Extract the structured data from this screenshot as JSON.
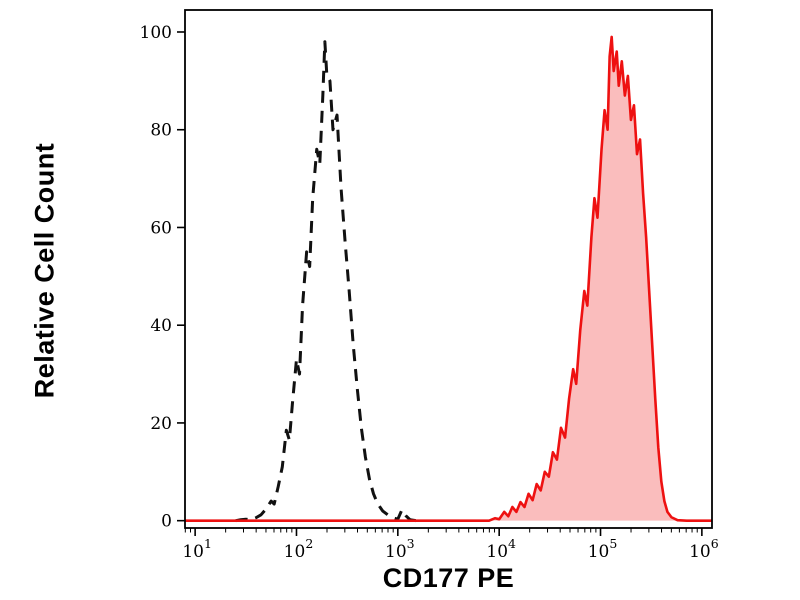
{
  "figure": {
    "background": "#ffffff",
    "frame_color": "#000000"
  },
  "chart_data": {
    "type": "area",
    "title": "",
    "xlabel": "CD177 PE",
    "ylabel": "Relative Cell Count",
    "x_scale": "log10",
    "x_range_log10": [
      0.9,
      6.1
    ],
    "ylim": [
      -1.5,
      104.5
    ],
    "grid": false,
    "legend": "none",
    "x_ticks": [
      {
        "mantissa": "10",
        "exponent": "1",
        "log10": 1
      },
      {
        "mantissa": "10",
        "exponent": "2",
        "log10": 2
      },
      {
        "mantissa": "10",
        "exponent": "3",
        "log10": 3
      },
      {
        "mantissa": "10",
        "exponent": "4",
        "log10": 4
      },
      {
        "mantissa": "10",
        "exponent": "5",
        "log10": 5
      },
      {
        "mantissa": "10",
        "exponent": "6",
        "log10": 6
      }
    ],
    "y_ticks": [
      0,
      20,
      40,
      60,
      80,
      100
    ],
    "series": [
      {
        "name": "dashed-black-control-histogram",
        "style": "dashed",
        "color": "#111111",
        "fill": "none",
        "stroke_width": 3,
        "dash": "12 8",
        "peak_x": 190,
        "peak_y": 98,
        "points_log10x_y": [
          [
            1.4,
            0
          ],
          [
            1.45,
            0.2
          ],
          [
            1.5,
            0.3
          ],
          [
            1.55,
            0.2
          ],
          [
            1.6,
            0.6
          ],
          [
            1.65,
            1.2
          ],
          [
            1.7,
            2.4
          ],
          [
            1.75,
            4.0
          ],
          [
            1.78,
            3.4
          ],
          [
            1.82,
            7.0
          ],
          [
            1.86,
            11.0
          ],
          [
            1.9,
            18.5
          ],
          [
            1.93,
            16.5
          ],
          [
            1.96,
            24.0
          ],
          [
            2.0,
            33.0
          ],
          [
            2.03,
            30.0
          ],
          [
            2.06,
            44.0
          ],
          [
            2.1,
            55.0
          ],
          [
            2.13,
            52.0
          ],
          [
            2.16,
            66.0
          ],
          [
            2.2,
            76.0
          ],
          [
            2.23,
            73.0
          ],
          [
            2.26,
            87.0
          ],
          [
            2.28,
            98.0
          ],
          [
            2.3,
            91.0
          ],
          [
            2.33,
            90.0
          ],
          [
            2.36,
            80.0
          ],
          [
            2.4,
            83.0
          ],
          [
            2.44,
            68.0
          ],
          [
            2.48,
            57.0
          ],
          [
            2.52,
            47.0
          ],
          [
            2.56,
            36.0
          ],
          [
            2.6,
            27.0
          ],
          [
            2.64,
            19.0
          ],
          [
            2.68,
            13.0
          ],
          [
            2.72,
            8.5
          ],
          [
            2.76,
            5.5
          ],
          [
            2.8,
            3.5
          ],
          [
            2.85,
            2.0
          ],
          [
            2.9,
            1.2
          ],
          [
            2.95,
            0.6
          ],
          [
            3.0,
            0.3
          ],
          [
            3.04,
            2.2
          ],
          [
            3.08,
            1.0
          ],
          [
            3.12,
            0.2
          ],
          [
            3.18,
            0
          ]
        ]
      },
      {
        "name": "red-filled-stained-histogram",
        "style": "solid",
        "color": "#ee1111",
        "fill": "#f9b1b1",
        "fill_opacity": 0.85,
        "stroke_width": 2.6,
        "peak_x": 130000,
        "peak_y": 99,
        "points_log10x_y": [
          [
            0.9,
            0
          ],
          [
            2.0,
            0
          ],
          [
            3.0,
            0
          ],
          [
            3.6,
            0
          ],
          [
            3.9,
            0
          ],
          [
            3.96,
            0.5
          ],
          [
            4.0,
            0.3
          ],
          [
            4.05,
            1.8
          ],
          [
            4.09,
            0.9
          ],
          [
            4.13,
            2.8
          ],
          [
            4.17,
            1.8
          ],
          [
            4.21,
            3.8
          ],
          [
            4.25,
            2.8
          ],
          [
            4.29,
            5.5
          ],
          [
            4.33,
            4.2
          ],
          [
            4.37,
            7.5
          ],
          [
            4.41,
            6.2
          ],
          [
            4.45,
            10.0
          ],
          [
            4.49,
            9.0
          ],
          [
            4.53,
            14.0
          ],
          [
            4.57,
            12.5
          ],
          [
            4.61,
            19.0
          ],
          [
            4.65,
            17.0
          ],
          [
            4.69,
            25.0
          ],
          [
            4.73,
            31.0
          ],
          [
            4.76,
            28.0
          ],
          [
            4.8,
            39.0
          ],
          [
            4.84,
            47.0
          ],
          [
            4.87,
            44.0
          ],
          [
            4.91,
            58.0
          ],
          [
            4.94,
            66.0
          ],
          [
            4.97,
            62.0
          ],
          [
            5.01,
            76.0
          ],
          [
            5.04,
            84.0
          ],
          [
            5.07,
            80.0
          ],
          [
            5.09,
            95.0
          ],
          [
            5.11,
            99.0
          ],
          [
            5.13,
            92.0
          ],
          [
            5.16,
            96.0
          ],
          [
            5.18,
            89.0
          ],
          [
            5.21,
            94.0
          ],
          [
            5.24,
            87.0
          ],
          [
            5.27,
            91.0
          ],
          [
            5.3,
            82.0
          ],
          [
            5.33,
            85.0
          ],
          [
            5.36,
            75.0
          ],
          [
            5.39,
            78.0
          ],
          [
            5.42,
            67.0
          ],
          [
            5.45,
            58.0
          ],
          [
            5.48,
            47.0
          ],
          [
            5.51,
            36.0
          ],
          [
            5.54,
            25.0
          ],
          [
            5.57,
            15.0
          ],
          [
            5.6,
            8.0
          ],
          [
            5.63,
            4.0
          ],
          [
            5.66,
            1.8
          ],
          [
            5.7,
            0.7
          ],
          [
            5.76,
            0.1
          ],
          [
            5.85,
            0
          ],
          [
            6.1,
            0
          ]
        ]
      }
    ]
  }
}
